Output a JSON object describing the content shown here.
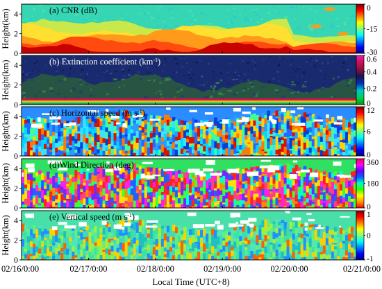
{
  "figure": {
    "ylabel": "Height(km)",
    "xlabel": "Local Time (UTC+8)",
    "x_ticks": [
      "02/16/0:00",
      "02/17/0:00",
      "02/18/0:00",
      "02/19/0:00",
      "02/20/0:00",
      "02/21/0:00"
    ]
  },
  "chart_data": [
    {
      "type": "heatmap",
      "panel": "a",
      "title_prefix": "(a) CNR (dB)",
      "title_sup": "",
      "title_suffix": "",
      "xlabel": "Local Time (UTC+8)",
      "ylabel": "Height(km)",
      "x_range": [
        "02/16/0:00",
        "02/21/0:00"
      ],
      "y_ticks": [
        0,
        2,
        4
      ],
      "ylim": [
        0,
        5
      ],
      "colorbar_ticks": [
        "0",
        "-15",
        "-30"
      ],
      "colorbar_range": [
        -30,
        0
      ],
      "colormap": "jet",
      "colorbar_direction": "top-high"
    },
    {
      "type": "heatmap",
      "panel": "b",
      "title_prefix": "(b) Extinction coefficient (km",
      "title_sup": "-1",
      "title_suffix": ")",
      "xlabel": "Local Time (UTC+8)",
      "ylabel": "Height(km)",
      "x_range": [
        "02/16/0:00",
        "02/21/0:00"
      ],
      "y_ticks": [
        0,
        2,
        4
      ],
      "ylim": [
        0,
        5
      ],
      "colorbar_ticks": [
        "0.6",
        "0.4",
        "0.2",
        "0"
      ],
      "colorbar_range": [
        0,
        0.6
      ],
      "colormap": "dark-green-blue-red-magenta",
      "colorbar_direction": "top-high"
    },
    {
      "type": "heatmap",
      "panel": "c",
      "title_prefix": "(c) Horizontal speed (m s",
      "title_sup": "-1",
      "title_suffix": ")",
      "xlabel": "Local Time (UTC+8)",
      "ylabel": "Height(km)",
      "x_range": [
        "02/16/0:00",
        "02/21/0:00"
      ],
      "y_ticks": [
        0,
        2,
        4
      ],
      "ylim": [
        0,
        5
      ],
      "colorbar_ticks": [
        "12",
        "6",
        "0"
      ],
      "colorbar_range": [
        0,
        12
      ],
      "colormap": "jet",
      "colorbar_direction": "top-high"
    },
    {
      "type": "heatmap",
      "panel": "d",
      "title_prefix": "(d)Wind Direction (deg)",
      "title_sup": "",
      "title_suffix": "",
      "xlabel": "Local Time (UTC+8)",
      "ylabel": "Height(km)",
      "x_range": [
        "02/16/0:00",
        "02/21/0:00"
      ],
      "y_ticks": [
        0,
        2,
        4
      ],
      "ylim": [
        0,
        5
      ],
      "colorbar_ticks": [
        "360",
        "180",
        "0"
      ],
      "colorbar_range": [
        0,
        360
      ],
      "colormap": "hsv",
      "colorbar_direction": "top-high"
    },
    {
      "type": "heatmap",
      "panel": "e",
      "title_prefix": "(e) Vertical speed (m s",
      "title_sup": "-1",
      "title_suffix": ")",
      "xlabel": "Local Time (UTC+8)",
      "ylabel": "Height(km)",
      "x_range": [
        "02/16/0:00",
        "02/21/0:00"
      ],
      "y_ticks": [
        0,
        2,
        4
      ],
      "ylim": [
        0,
        5
      ],
      "colorbar_ticks": [
        "1",
        "0",
        "-1"
      ],
      "colorbar_range": [
        -1,
        1
      ],
      "colormap": "jet",
      "colorbar_direction": "top-high"
    }
  ]
}
